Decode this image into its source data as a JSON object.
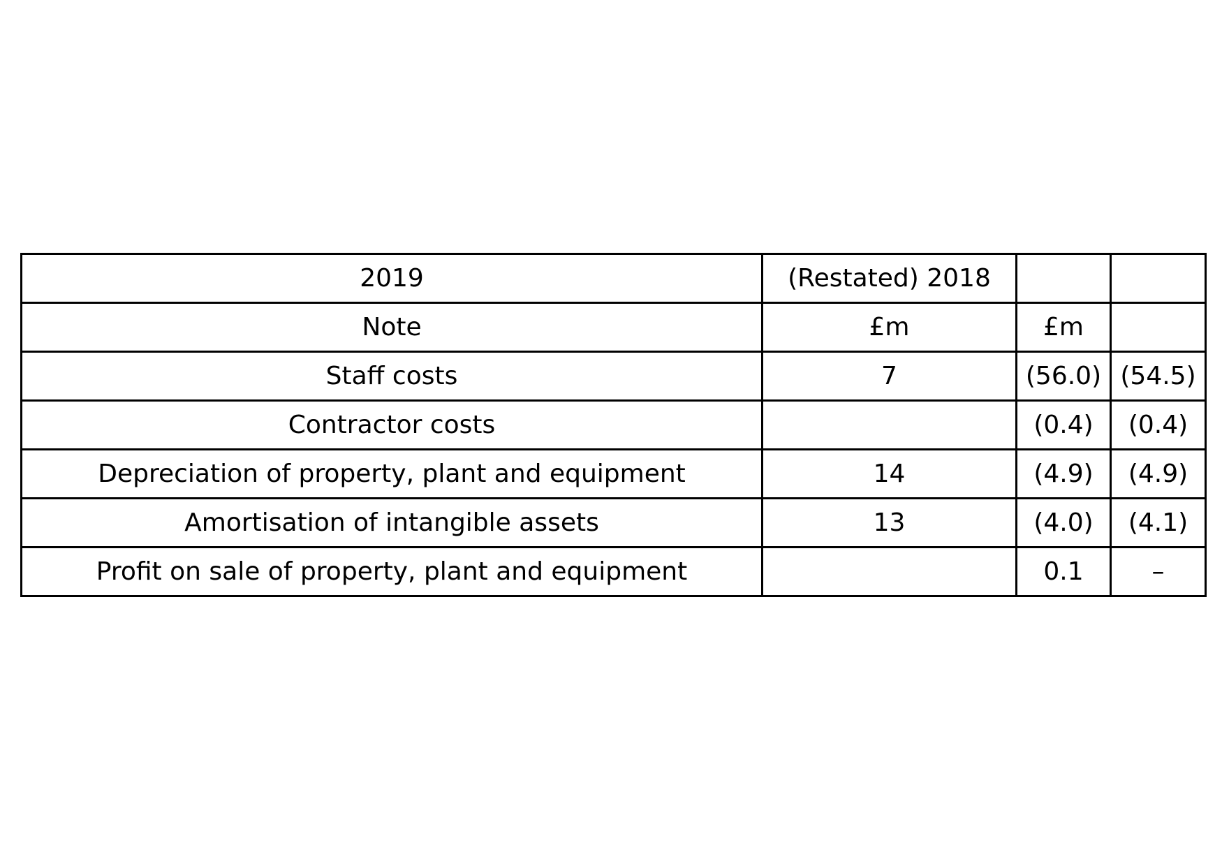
{
  "table": {
    "rows": [
      [
        "2019",
        "(Restated) 2018",
        "",
        ""
      ],
      [
        "Note",
        "£m",
        "£m",
        ""
      ],
      [
        "Staff costs",
        "7",
        "(56.0)",
        "(54.5)"
      ],
      [
        "Contractor costs",
        "",
        "(0.4)",
        "(0.4)"
      ],
      [
        "Depreciation of property, plant and equipment",
        "14",
        "(4.9)",
        "(4.9)"
      ],
      [
        "Amortisation of intangible assets",
        "13",
        "(4.0)",
        "(4.1)"
      ],
      [
        "Profit on sale of property, plant and equipment",
        "",
        "0.1",
        "–"
      ]
    ]
  }
}
